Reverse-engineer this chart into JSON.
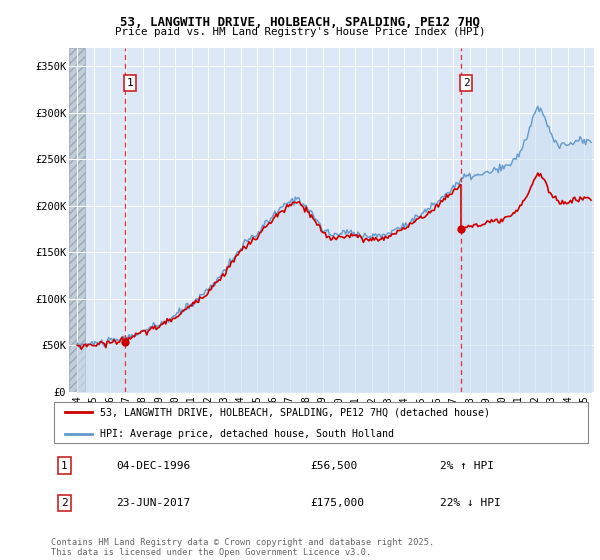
{
  "title": "53, LANGWITH DRIVE, HOLBEACH, SPALDING, PE12 7HQ",
  "subtitle": "Price paid vs. HM Land Registry's House Price Index (HPI)",
  "ylabel_ticks": [
    "£0",
    "£50K",
    "£100K",
    "£150K",
    "£200K",
    "£250K",
    "£300K",
    "£350K"
  ],
  "ytick_values": [
    0,
    50000,
    100000,
    150000,
    200000,
    250000,
    300000,
    350000
  ],
  "ylim": [
    0,
    370000
  ],
  "xlim_start": 1993.5,
  "xlim_end": 2025.6,
  "transaction1": {
    "date_num": 1996.92,
    "price": 56500,
    "label": "1",
    "date_str": "04-DEC-1996",
    "pct": "2%",
    "dir": "↑"
  },
  "transaction2": {
    "date_num": 2017.48,
    "price": 175000,
    "label": "2",
    "date_str": "23-JUN-2017",
    "pct": "22%",
    "dir": "↓"
  },
  "property_line_color": "#cc0000",
  "hpi_line_color": "#6699cc",
  "hpi_fill_color": "#ccdff0",
  "background_plot": "#dce8f5",
  "grid_color": "#ffffff",
  "legend_property_label": "53, LANGWITH DRIVE, HOLBEACH, SPALDING, PE12 7HQ (detached house)",
  "legend_hpi_label": "HPI: Average price, detached house, South Holland",
  "footnote": "Contains HM Land Registry data © Crown copyright and database right 2025.\nThis data is licensed under the Open Government Licence v3.0.",
  "xtick_labels": [
    "94",
    "95",
    "96",
    "97",
    "98",
    "99",
    "00",
    "01",
    "02",
    "03",
    "04",
    "05",
    "06",
    "07",
    "08",
    "09",
    "10",
    "11",
    "12",
    "13",
    "14",
    "15",
    "16",
    "17",
    "18",
    "19",
    "20",
    "21",
    "22",
    "23",
    "24",
    "25"
  ],
  "xtick_years": [
    1994,
    1995,
    1996,
    1997,
    1998,
    1999,
    2000,
    2001,
    2002,
    2003,
    2004,
    2005,
    2006,
    2007,
    2008,
    2009,
    2010,
    2011,
    2012,
    2013,
    2014,
    2015,
    2016,
    2017,
    2018,
    2019,
    2020,
    2021,
    2022,
    2023,
    2024,
    2025
  ]
}
